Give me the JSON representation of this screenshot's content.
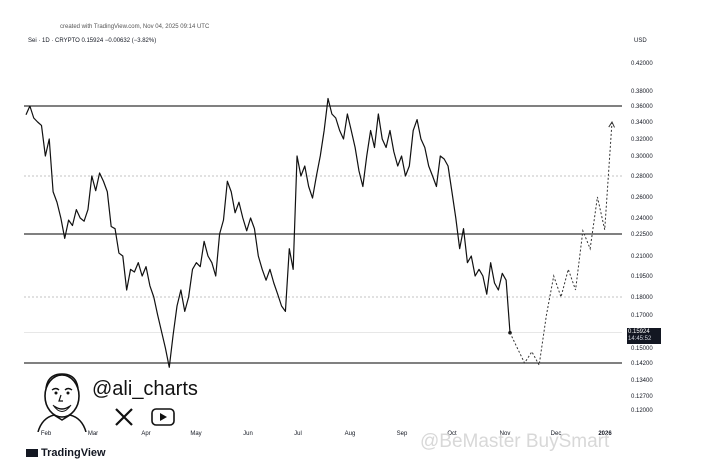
{
  "header": {
    "created": "created with TradingView.com, Nov 04, 2025 09:14 UTC",
    "symbol": "Sei · 1D · CRYPTO",
    "price": "0.15924",
    "change": "−0.00632 (−3.82%)",
    "currency": "USD"
  },
  "price_label": {
    "value": "0.15924",
    "countdown": "14:45:52"
  },
  "author": {
    "handle": "@ali_charts",
    "x_icon": "x-logo-icon",
    "play_icon": "play-button-icon"
  },
  "footer": {
    "brand": "TradingView",
    "watermark": "@BeMaster BuySmart"
  },
  "colors": {
    "line": "#111111",
    "hline": "#000000",
    "dotted": "#b0b0b0",
    "label_bg": "#131722"
  },
  "chart_data": {
    "type": "line",
    "yticks": [
      "0.42000",
      "0.38000",
      "0.36000",
      "0.34000",
      "0.32000",
      "0.30000",
      "0.28000",
      "0.26000",
      "0.24000",
      "0.22500",
      "0.21000",
      "0.19500",
      "0.18000",
      "0.17000",
      "0.15000",
      "0.14200",
      "0.13400",
      "0.12700",
      "0.12000"
    ],
    "xticks": [
      "Feb",
      "Mar",
      "Apr",
      "May",
      "Jun",
      "Jul",
      "Aug",
      "Sep",
      "Oct",
      "Nov",
      "Dec",
      "2026"
    ],
    "series": [
      {
        "values": [
          0.349,
          0.36,
          0.345,
          0.34,
          0.336,
          0.3,
          0.32,
          0.265,
          0.255,
          0.24,
          0.222,
          0.238,
          0.233,
          0.248,
          0.24,
          0.237,
          0.248,
          0.28,
          0.266,
          0.283,
          0.275,
          0.265,
          0.232,
          0.23,
          0.212,
          0.21,
          0.185,
          0.2,
          0.198,
          0.205,
          0.195,
          0.202,
          0.188,
          0.18,
          0.17,
          0.16,
          0.15,
          0.14,
          0.158,
          0.175,
          0.185,
          0.172,
          0.18,
          0.2,
          0.205,
          0.202,
          0.22,
          0.21,
          0.205,
          0.195,
          0.225,
          0.238,
          0.275,
          0.265,
          0.245,
          0.255,
          0.24,
          0.228,
          0.24,
          0.23,
          0.21,
          0.2,
          0.192,
          0.2,
          0.19,
          0.182,
          0.175,
          0.172,
          0.215,
          0.2,
          0.3,
          0.28,
          0.29,
          0.27,
          0.259,
          0.28,
          0.3,
          0.33,
          0.37,
          0.35,
          0.345,
          0.33,
          0.32,
          0.35,
          0.33,
          0.31,
          0.285,
          0.27,
          0.3,
          0.33,
          0.31,
          0.35,
          0.32,
          0.31,
          0.33,
          0.305,
          0.29,
          0.3,
          0.28,
          0.29,
          0.33,
          0.343,
          0.32,
          0.31,
          0.29,
          0.28,
          0.27,
          0.3,
          0.297,
          0.29,
          0.265,
          0.24,
          0.215,
          0.23,
          0.205,
          0.21,
          0.195,
          0.2,
          0.195,
          0.182,
          0.205,
          0.19,
          0.185,
          0.197,
          0.192,
          0.15924
        ]
      },
      {
        "values": [
          0.15924,
          0.15,
          0.142,
          0.148,
          0.141,
          0.17,
          0.195,
          0.18,
          0.2,
          0.185,
          0.228,
          0.215,
          0.26,
          0.229,
          0.34
        ]
      }
    ],
    "hlines": [
      0.36,
      0.225,
      0.142
    ],
    "dotted_levels": [
      0.28,
      0.18
    ]
  }
}
